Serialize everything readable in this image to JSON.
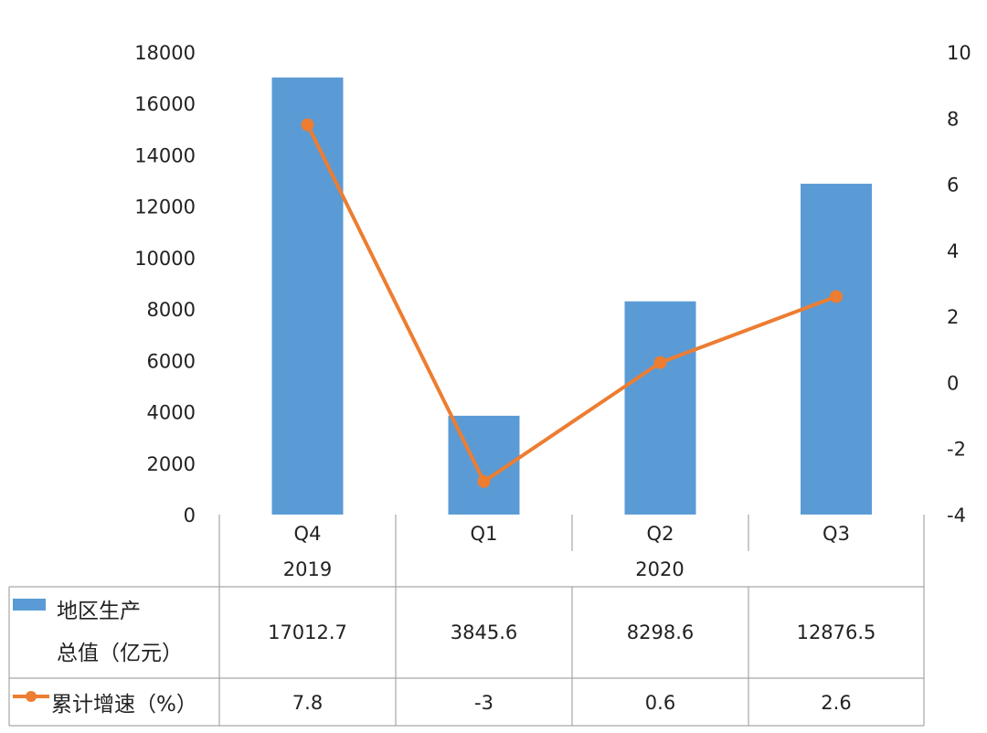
{
  "chart_data": {
    "type": "bar+line",
    "groups": [
      {
        "label": "2019",
        "categories": [
          "Q4"
        ]
      },
      {
        "label": "2020",
        "categories": [
          "Q1",
          "Q2",
          "Q3"
        ]
      }
    ],
    "categories": [
      "Q4",
      "Q1",
      "Q2",
      "Q3"
    ],
    "series": [
      {
        "name_lines": [
          "地区生产",
          "总值（亿元）"
        ],
        "type": "bar",
        "axis": "left",
        "color": "#5B9BD5",
        "values": [
          17012.7,
          3845.6,
          8298.6,
          12876.5
        ],
        "labels": [
          "17012.7",
          "3845.6",
          "8298.6",
          "12876.5"
        ]
      },
      {
        "name": "累计增速（%）",
        "type": "line",
        "axis": "right",
        "color": "#ED7D31",
        "values": [
          7.8,
          -3,
          0.6,
          2.6
        ],
        "labels": [
          "7.8",
          "-3",
          "0.6",
          "2.6"
        ]
      }
    ],
    "y_left": {
      "min": 0,
      "max": 18000,
      "step": 2000
    },
    "y_right": {
      "min": -4,
      "max": 10,
      "step": 2
    },
    "grid": false,
    "legend": "data-table"
  }
}
